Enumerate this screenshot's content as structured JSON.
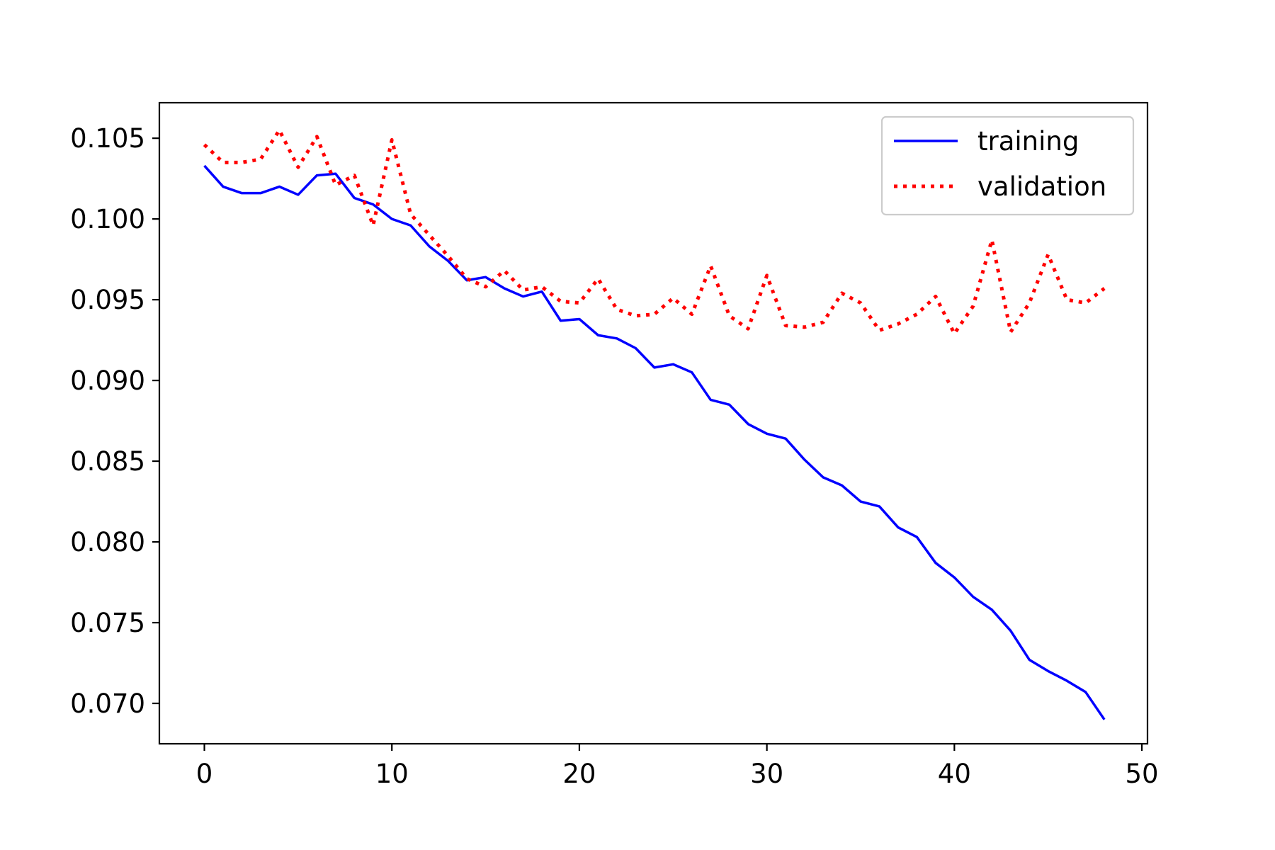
{
  "chart_data": {
    "type": "line",
    "title": "",
    "xlabel": "",
    "ylabel": "",
    "xlim": [
      -2.4,
      50.3
    ],
    "ylim": [
      0.0675,
      0.1072
    ],
    "x_ticks": [
      0,
      10,
      20,
      30,
      40,
      50
    ],
    "x_tick_labels": [
      "0",
      "10",
      "20",
      "30",
      "40",
      "50"
    ],
    "y_ticks": [
      0.07,
      0.075,
      0.08,
      0.085,
      0.09,
      0.095,
      0.1,
      0.105
    ],
    "y_tick_labels": [
      "0.070",
      "0.075",
      "0.080",
      "0.085",
      "0.090",
      "0.095",
      "0.100",
      "0.105"
    ],
    "grid": false,
    "legend_position": "top-right",
    "x": [
      0,
      1,
      2,
      3,
      4,
      5,
      6,
      7,
      8,
      9,
      10,
      11,
      12,
      13,
      14,
      15,
      16,
      17,
      18,
      19,
      20,
      21,
      22,
      23,
      24,
      25,
      26,
      27,
      28,
      29,
      30,
      31,
      32,
      33,
      34,
      35,
      36,
      37,
      38,
      39,
      40,
      41,
      42,
      43,
      44,
      45,
      46,
      47,
      48
    ],
    "series": [
      {
        "name": "training",
        "color": "#0000ff",
        "style": "solid",
        "values": [
          0.1033,
          0.102,
          0.1016,
          0.1016,
          0.102,
          0.1015,
          0.1027,
          0.1028,
          0.1013,
          0.1009,
          0.1,
          0.0996,
          0.0983,
          0.0974,
          0.0962,
          0.0964,
          0.0957,
          0.0952,
          0.0955,
          0.0937,
          0.0938,
          0.0928,
          0.0926,
          0.092,
          0.0908,
          0.091,
          0.0905,
          0.0888,
          0.0885,
          0.0873,
          0.0867,
          0.0864,
          0.0851,
          0.084,
          0.0835,
          0.0825,
          0.0822,
          0.0809,
          0.0803,
          0.0787,
          0.0778,
          0.0766,
          0.0758,
          0.0745,
          0.0727,
          0.072,
          0.0714,
          0.0707,
          0.069
        ]
      },
      {
        "name": "validation",
        "color": "#ff0000",
        "style": "dotted",
        "values": [
          0.1046,
          0.1035,
          0.1035,
          0.1037,
          0.1055,
          0.1032,
          0.1051,
          0.1021,
          0.1027,
          0.0996,
          0.1049,
          0.1003,
          0.099,
          0.0977,
          0.0963,
          0.0958,
          0.0968,
          0.0956,
          0.0958,
          0.0949,
          0.0948,
          0.0963,
          0.0944,
          0.094,
          0.0941,
          0.0951,
          0.0941,
          0.0971,
          0.094,
          0.0932,
          0.0965,
          0.0934,
          0.0933,
          0.0936,
          0.0954,
          0.0948,
          0.0931,
          0.0935,
          0.0941,
          0.0952,
          0.0929,
          0.0946,
          0.0987,
          0.093,
          0.0948,
          0.0978,
          0.095,
          0.0948,
          0.0957
        ]
      }
    ]
  }
}
